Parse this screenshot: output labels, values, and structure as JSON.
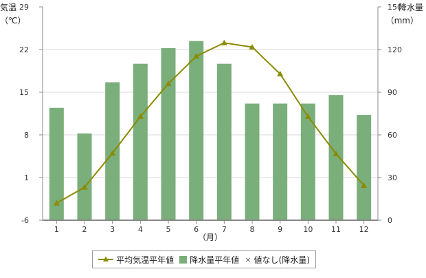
{
  "chart_data": {
    "type": "bar+line",
    "categories": [
      "1",
      "2",
      "3",
      "4",
      "5",
      "6",
      "7",
      "8",
      "9",
      "10",
      "11",
      "12"
    ],
    "xlabel": "（月）",
    "y_left": {
      "label_line1": "気温",
      "label_line2": "（℃）",
      "ticks": [
        "29",
        "22",
        "15",
        "8",
        "1",
        "-6"
      ],
      "ylim": [
        -6,
        29
      ]
    },
    "y_right": {
      "label_line1": "降水量",
      "label_line2": "（mm）",
      "ticks": [
        "150",
        "120",
        "90",
        "60",
        "30",
        "0"
      ],
      "ylim": [
        0,
        150
      ]
    },
    "series": [
      {
        "name": "平均気温平年値",
        "type": "line",
        "axis": "left",
        "color": "#8b8b00",
        "values": [
          -3.2,
          -0.6,
          5.0,
          11.0,
          16.4,
          20.9,
          23.1,
          22.4,
          18.0,
          11.0,
          4.9,
          -0.3
        ]
      },
      {
        "name": "降水量平年値",
        "type": "bar",
        "axis": "right",
        "color": "#7aae7a",
        "values": [
          79,
          61,
          97,
          110,
          121,
          126,
          110,
          82,
          82,
          82,
          88,
          74
        ]
      }
    ],
    "grid": true,
    "legend_position": "bottom"
  },
  "legend": {
    "line_label": "平均気温平年値",
    "bar_label": "降水量平年値",
    "nodata_symbol": "×",
    "nodata_label": "値なし(降水量)"
  }
}
